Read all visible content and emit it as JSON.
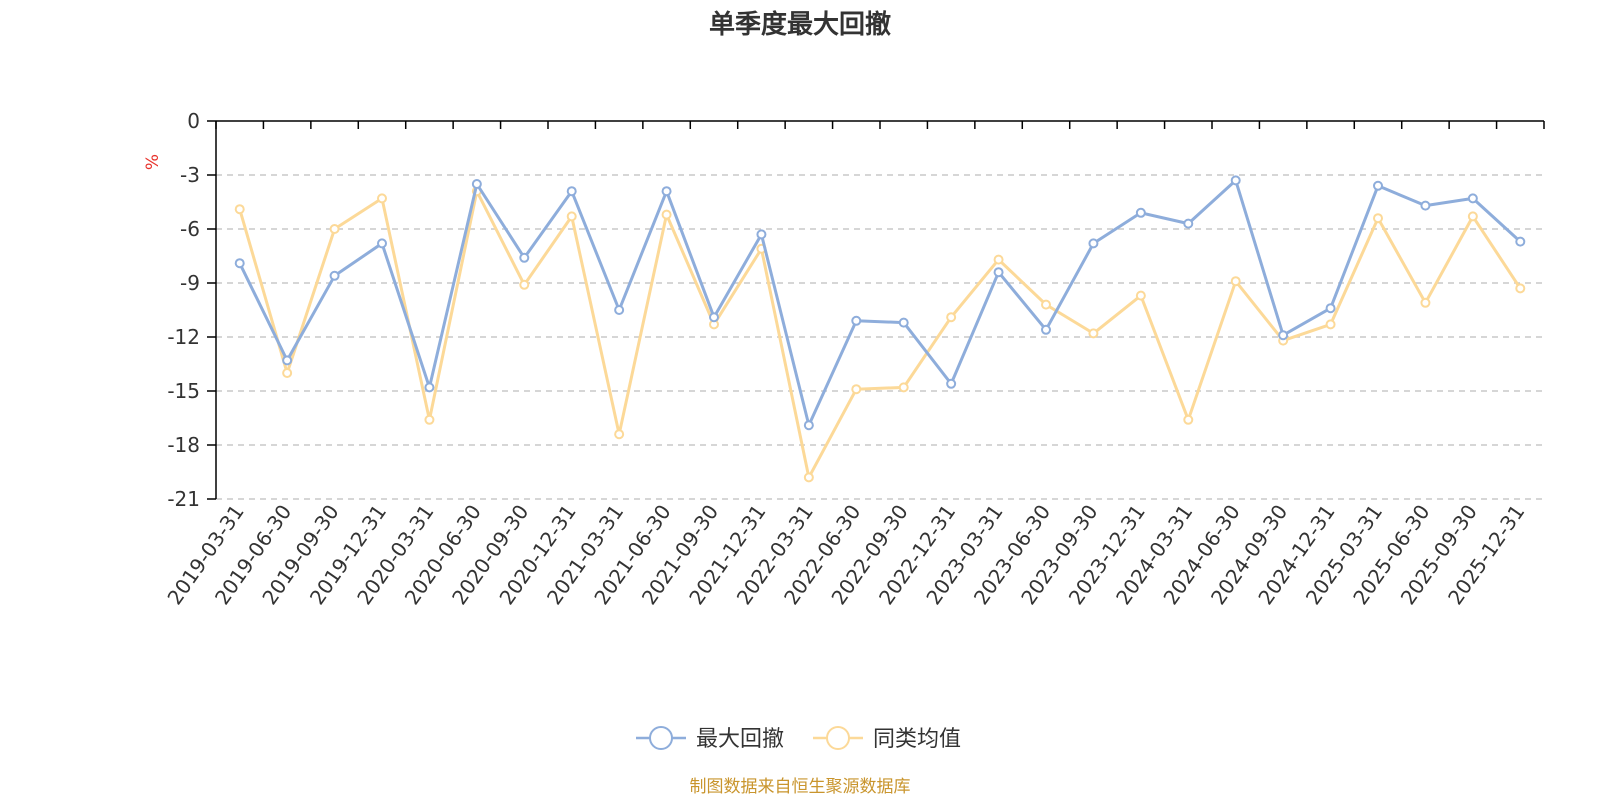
{
  "chart_data": {
    "type": "line",
    "title": "单季度最大回撤",
    "ylabel": "%",
    "ylim": [
      -21,
      0
    ],
    "yticks": [
      0,
      -3,
      -6,
      -9,
      -12,
      -15,
      -18,
      -21
    ],
    "grid": true,
    "legend_position": "bottom-center",
    "categories": [
      "2019-03-31",
      "2019-06-30",
      "2019-09-30",
      "2019-12-31",
      "2020-03-31",
      "2020-06-30",
      "2020-09-30",
      "2020-12-31",
      "2021-03-31",
      "2021-06-30",
      "2021-09-30",
      "2021-12-31",
      "2022-03-31",
      "2022-06-30",
      "2022-09-30",
      "2022-12-31",
      "2023-03-31",
      "2023-06-30",
      "2023-09-30",
      "2023-12-31",
      "2024-03-31",
      "2024-06-30",
      "2024-09-30",
      "2024-12-31",
      "2025-03-31",
      "2025-06-30",
      "2025-09-30",
      "2025-12-31"
    ],
    "series": [
      {
        "name": "最大回撤",
        "color": "#8eaddb",
        "values": [
          -7.9,
          -13.3,
          -8.6,
          -6.8,
          -14.8,
          -3.5,
          -7.6,
          -3.9,
          -10.5,
          -3.9,
          -10.9,
          -6.3,
          -16.9,
          -11.1,
          -11.2,
          -14.6,
          -8.4,
          -11.6,
          -6.8,
          -5.1,
          -5.7,
          -3.3,
          -11.9,
          -10.4,
          -3.6,
          -4.7,
          -4.3,
          -6.7
        ]
      },
      {
        "name": "同类均值",
        "color": "#fcd998",
        "values": [
          -4.9,
          -14.0,
          -6.0,
          -4.3,
          -16.6,
          -3.9,
          -9.1,
          -5.3,
          -17.4,
          -5.2,
          -11.3,
          -7.1,
          -19.8,
          -14.9,
          -14.8,
          -10.9,
          -7.7,
          -10.2,
          -11.8,
          -9.7,
          -16.6,
          -8.9,
          -12.2,
          -11.3,
          -5.4,
          -10.1,
          -5.3,
          -9.3
        ]
      }
    ]
  },
  "footer": {
    "source": "制图数据来自恒生聚源数据库"
  },
  "colors": {
    "unit": "#e8322b",
    "source": "#c9952d",
    "grid": "#c8c8c8",
    "axis": "#000000"
  }
}
